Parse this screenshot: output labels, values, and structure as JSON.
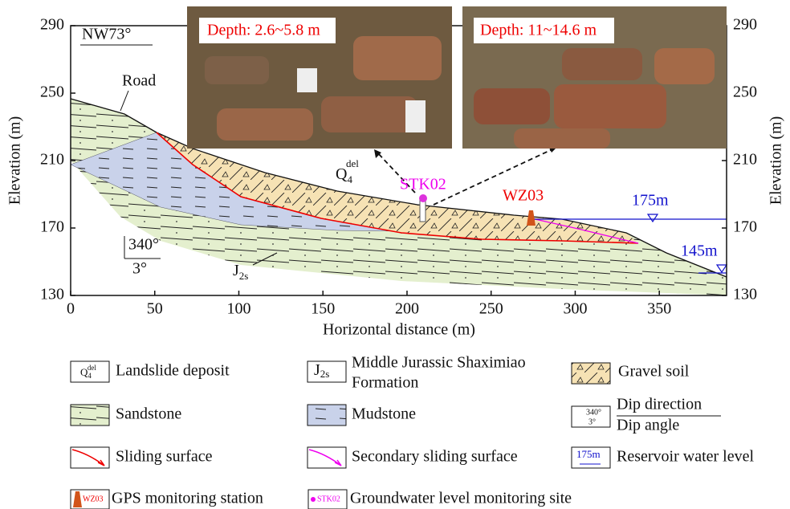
{
  "axes": {
    "x_label": "Horizontal distance (m)",
    "y_label": "Elevation (m)",
    "y2_label": "Elevation (m)",
    "xlim": [
      0,
      390
    ],
    "ylim": [
      130,
      290
    ],
    "xticks": [
      0,
      50,
      100,
      150,
      200,
      250,
      300,
      350
    ],
    "yticks": [
      130,
      170,
      210,
      250,
      290
    ]
  },
  "photos": [
    {
      "caption": "Depth: 2.6~5.8 m"
    },
    {
      "caption": "Depth: 11~14.6 m"
    }
  ],
  "annotations": {
    "orientation": "NW73°",
    "road": "Road",
    "deposit": {
      "main": "Q",
      "sub": "4",
      "sup": "del"
    },
    "borehole": "STK02",
    "gps": "WZ03",
    "water_high": "175m",
    "water_low": "145m",
    "dip_direction": "340°",
    "dip_angle": "3°",
    "formation": {
      "main": "J",
      "sub": "2s"
    }
  },
  "legend": {
    "landslide_deposit": {
      "icon": {
        "main": "Q",
        "sub": "4",
        "sup": "del"
      },
      "label": "Landslide deposit"
    },
    "formation": {
      "icon": {
        "main": "J",
        "sub": "2s"
      },
      "label_lines": [
        "Middle Jurassic Shaximiao",
        "Formation"
      ]
    },
    "gravel_soil": {
      "label": "Gravel soil"
    },
    "sandstone": {
      "label": "Sandstone"
    },
    "mudstone": {
      "label": "Mudstone"
    },
    "dip": {
      "icon": {
        "top": "340°",
        "bottom": "3°"
      },
      "label_lines": [
        "Dip direction",
        "Dip angle"
      ]
    },
    "sliding_surface": {
      "label": "Sliding surface"
    },
    "secondary_sliding_surface": {
      "label": "Secondary sliding surface"
    },
    "reservoir": {
      "icon": "175m",
      "label": "Reservoir water level"
    },
    "gps": {
      "icon": "WZ03",
      "label": "GPS  monitoring station"
    },
    "groundwater": {
      "icon": "STK02",
      "label": "Groundwater level monitoring site"
    }
  }
}
